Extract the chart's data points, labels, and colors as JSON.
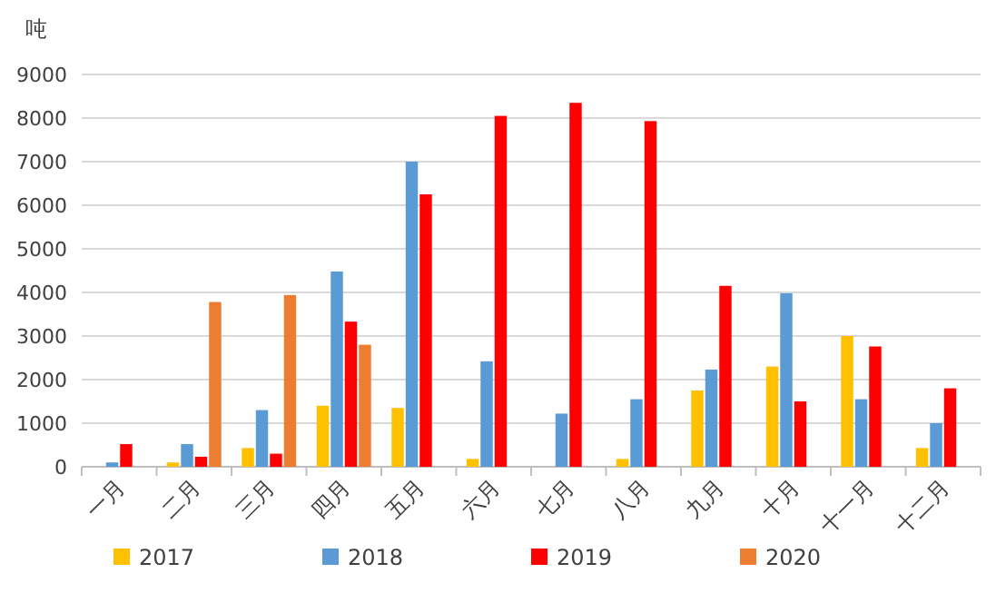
{
  "chart_data": {
    "type": "bar",
    "ylabel": "吨",
    "categories": [
      "一月",
      "二月",
      "三月",
      "四月",
      "五月",
      "六月",
      "七月",
      "八月",
      "九月",
      "十月",
      "十一月",
      "十二月"
    ],
    "series": [
      {
        "name": "2017",
        "color": "#ffc000",
        "values": [
          null,
          100,
          430,
          1400,
          1350,
          180,
          null,
          180,
          1750,
          2300,
          3000,
          430
        ]
      },
      {
        "name": "2018",
        "color": "#5b9bd5",
        "values": [
          100,
          520,
          1300,
          4480,
          7000,
          2420,
          1220,
          1550,
          2230,
          3980,
          1550,
          1000
        ]
      },
      {
        "name": "2019",
        "color": "#ff0000",
        "values": [
          520,
          230,
          300,
          3330,
          6250,
          8050,
          8350,
          7930,
          4150,
          1500,
          2760,
          1800
        ]
      },
      {
        "name": "2020",
        "color": "#ed7d31",
        "values": [
          null,
          3780,
          3940,
          2800,
          null,
          null,
          null,
          null,
          null,
          null,
          null,
          null
        ]
      }
    ],
    "ylim": [
      0,
      9000
    ],
    "yticks": [
      0,
      1000,
      2000,
      3000,
      4000,
      5000,
      6000,
      7000,
      8000,
      9000
    ],
    "grid": "y",
    "legend": "bottom"
  }
}
